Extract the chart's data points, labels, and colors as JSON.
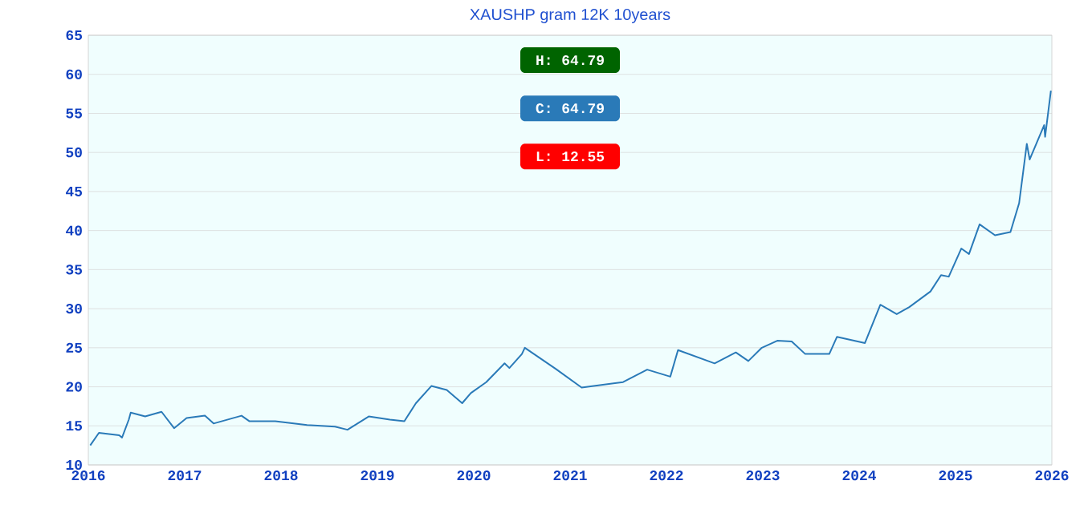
{
  "chart_data": {
    "type": "line",
    "title": "XAUSHP gram 12K 10years",
    "annotations": [
      "H: 64.79",
      "C: 64.79",
      "L: 12.55"
    ],
    "x": [
      2016.02,
      2016.11,
      2016.32,
      2016.35,
      2016.42,
      2016.44,
      2016.59,
      2016.76,
      2016.89,
      2017.02,
      2017.21,
      2017.3,
      2017.59,
      2017.67,
      2017.94,
      2018.27,
      2018.56,
      2018.69,
      2018.91,
      2019.13,
      2019.28,
      2019.4,
      2019.56,
      2019.72,
      2019.88,
      2019.97,
      2020.13,
      2020.32,
      2020.37,
      2020.5,
      2020.53,
      2020.85,
      2021.12,
      2021.55,
      2021.8,
      2022.04,
      2022.12,
      2022.5,
      2022.72,
      2022.85,
      2022.99,
      2023.15,
      2023.3,
      2023.44,
      2023.69,
      2023.77,
      2024.06,
      2024.22,
      2024.39,
      2024.52,
      2024.74,
      2024.85,
      2024.93,
      2025.06,
      2025.14,
      2025.25,
      2025.41,
      2025.57,
      2025.66,
      2025.74,
      2025.77,
      2025.92,
      2025.93,
      2025.99
    ],
    "series": [
      {
        "color": "#2a7ab8",
        "values": [
          12.5,
          14.1,
          13.8,
          13.5,
          15.8,
          16.7,
          16.2,
          16.8,
          14.7,
          16.0,
          16.3,
          15.3,
          16.3,
          15.6,
          15.6,
          15.1,
          14.9,
          14.5,
          16.2,
          15.8,
          15.6,
          17.9,
          20.1,
          19.6,
          17.9,
          19.2,
          20.6,
          23.0,
          22.4,
          24.2,
          25.0,
          22.3,
          19.9,
          20.6,
          22.2,
          21.3,
          24.7,
          23.0,
          24.4,
          23.3,
          25.0,
          25.9,
          25.8,
          24.2,
          24.2,
          26.4,
          25.6,
          30.5,
          29.3,
          30.2,
          32.2,
          34.3,
          34.1,
          37.7,
          37.0,
          40.8,
          39.4,
          39.8,
          43.5,
          51.1,
          49.1,
          53.5,
          52.0,
          57.9
        ]
      }
    ],
    "xlim": [
      2016,
      2026
    ],
    "xticks": [
      2016,
      2017,
      2018,
      2019,
      2020,
      2021,
      2022,
      2023,
      2024,
      2025,
      2026
    ],
    "ylim": [
      10,
      65
    ],
    "yticks": [
      10,
      15,
      20,
      25,
      30,
      35,
      40,
      45,
      50,
      55,
      60,
      65
    ],
    "grid": "y",
    "marker": "none",
    "line_style": "solid"
  }
}
